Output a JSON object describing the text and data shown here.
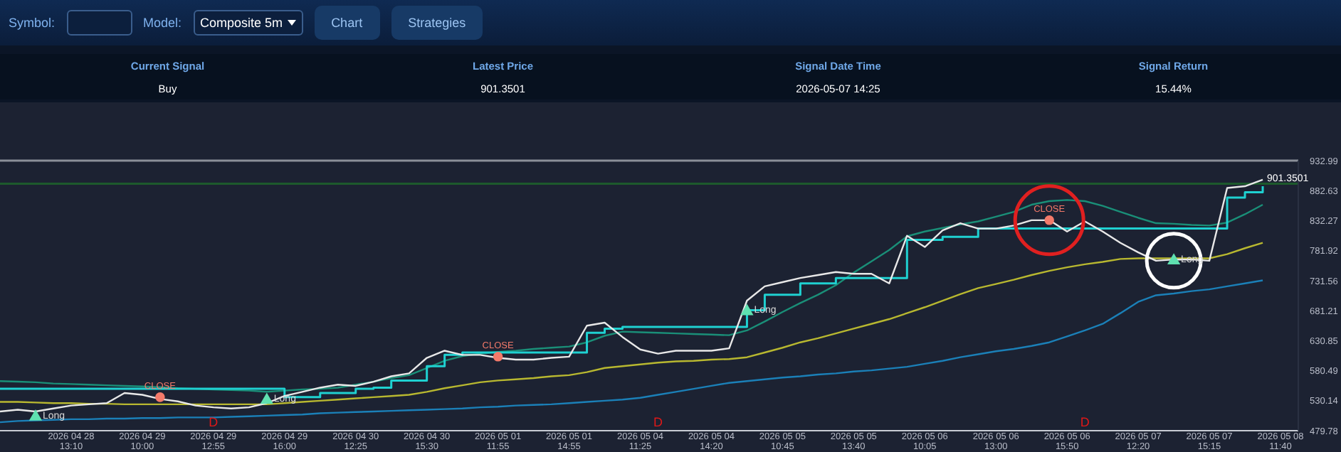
{
  "chart_data": [
    {
      "type": "other",
      "categories": [
        "Current Signal",
        "Latest Price",
        "Signal Date Time",
        "Signal Return"
      ],
      "value_labels": [
        "Buy",
        "901.3501",
        "2026-05-07 14:25",
        "15.44%"
      ],
      "annotations": [
        "Symbol:",
        "Model:",
        "Composite 5m",
        "Chart",
        "Strategies"
      ]
    },
    {
      "type": "line",
      "categories": [
        null,
        null,
        null,
        null,
        "2026 04 28 13:10",
        null,
        null,
        null,
        "2026 04 29 10:00",
        null,
        null,
        null,
        "2026 04 29 12:55",
        null,
        null,
        null,
        "2026 04 29 16:00",
        null,
        null,
        null,
        "2026 04 30 12:25",
        null,
        null,
        null,
        "2026 04 30 15:30",
        null,
        null,
        null,
        "2026 05 01 11:55",
        null,
        null,
        null,
        "2026 05 01 14:55",
        null,
        null,
        null,
        "2026 05 04 11:25",
        null,
        null,
        null,
        "2026 05 04 14:20",
        null,
        null,
        null,
        "2026 05 05 10:45",
        null,
        null,
        null,
        "2026 05 05 13:40",
        null,
        null,
        null,
        "2026 05 06 10:05",
        null,
        null,
        null,
        "2026 05 06 13:00",
        null,
        null,
        null,
        "2026 05 06 15:50",
        null,
        null,
        null,
        "2026 05 07 12:20",
        null,
        null,
        null,
        "2026 05 07 15:15",
        null,
        null,
        null,
        "2026 05 08 11:40",
        null
      ],
      "ylim": [
        479.78,
        932.99
      ],
      "yticks": [
        479.78,
        530.14,
        580.49,
        630.85,
        681.21,
        731.56,
        781.92,
        832.27,
        882.63,
        932.99
      ],
      "series": [
        {
          "type": "line",
          "color": "#1b80b8",
          "values": [
            494,
            496,
            497,
            498,
            499,
            499,
            500,
            500,
            501,
            501,
            502,
            502,
            502,
            503,
            504,
            505,
            506,
            507,
            509,
            510,
            511,
            512,
            513,
            514,
            515,
            516,
            517,
            519,
            520,
            522,
            523,
            524,
            526,
            528,
            530,
            532,
            535,
            540,
            545,
            550,
            555,
            560,
            563,
            566,
            569,
            571,
            574,
            576,
            579,
            581,
            584,
            587,
            592,
            597,
            603,
            608,
            613,
            617,
            622,
            628,
            638,
            648,
            659,
            677,
            696,
            707,
            710,
            714,
            717,
            722,
            727,
            732,
            null,
            null
          ]
        },
        {
          "type": "line",
          "color": "#b8b830",
          "values": [
            528,
            528,
            527,
            526,
            526,
            525,
            525,
            524,
            524,
            524,
            524,
            524,
            524,
            524,
            524,
            524,
            526,
            528,
            530,
            532,
            534,
            536,
            538,
            540,
            545,
            551,
            556,
            561,
            564,
            566,
            568,
            571,
            573,
            578,
            585,
            588,
            591,
            594,
            596,
            597,
            599,
            600,
            603,
            611,
            619,
            628,
            635,
            643,
            651,
            659,
            667,
            677,
            687,
            698,
            709,
            719,
            726,
            733,
            741,
            748,
            754,
            759,
            763,
            768,
            769,
            769,
            769,
            769,
            769,
            776,
            786,
            795,
            null,
            null
          ]
        },
        {
          "type": "line",
          "color": "#1a8f78",
          "values": [
            563,
            562,
            561,
            559,
            558,
            557,
            556,
            555,
            554,
            553,
            551,
            550,
            549,
            548,
            547,
            545,
            547,
            549,
            550,
            552,
            557,
            562,
            568,
            573,
            585,
            597,
            605,
            609,
            612,
            614,
            617,
            619,
            621,
            628,
            639,
            646,
            645,
            644,
            643,
            642,
            641,
            640,
            648,
            663,
            679,
            694,
            708,
            724,
            745,
            764,
            783,
            806,
            814,
            820,
            826,
            831,
            839,
            847,
            859,
            865,
            867,
            865,
            857,
            847,
            837,
            828,
            827,
            825,
            824,
            829,
            843,
            859,
            null,
            null
          ]
        },
        {
          "type": "step",
          "color": "#1fd1d1",
          "values": [
            550,
            550,
            550,
            550,
            550,
            550,
            550,
            550,
            550,
            550,
            550,
            550,
            550,
            550,
            550,
            550,
            536,
            536,
            543,
            543,
            550,
            552,
            564,
            564,
            588,
            607,
            611,
            611,
            611,
            611,
            611,
            611,
            611,
            644,
            651,
            654,
            654,
            654,
            654,
            654,
            654,
            654,
            682,
            708,
            708,
            727,
            727,
            736,
            736,
            736,
            736,
            800,
            800,
            805,
            805,
            819,
            819,
            819,
            819,
            819,
            819,
            819,
            819,
            819,
            819,
            819,
            819,
            819,
            819,
            871,
            880,
            890,
            null,
            null
          ]
        },
        {
          "type": "line",
          "color": "#e8e8e8",
          "values": [
            512,
            515,
            512,
            517,
            522,
            524,
            526,
            543,
            540,
            533,
            529,
            522,
            519,
            517,
            519,
            526,
            538,
            545,
            552,
            557,
            555,
            562,
            571,
            576,
            602,
            614,
            607,
            607,
            602,
            599,
            599,
            602,
            604,
            656,
            661,
            637,
            616,
            609,
            614,
            614,
            614,
            618,
            698,
            722,
            729,
            736,
            741,
            746,
            743,
            743,
            727,
            807,
            788,
            816,
            828,
            819,
            819,
            824,
            833,
            833,
            814,
            831,
            814,
            795,
            779,
            765,
            767,
            767,
            765,
            887,
            890,
            901,
            null,
            null
          ]
        },
        {
          "type": "scatter",
          "name": "Long",
          "marker": "triangle",
          "color": "#5fe0b0",
          "values": [
            null,
            null,
            503,
            null,
            null,
            null,
            null,
            null,
            null,
            null,
            null,
            null,
            null,
            null,
            null,
            531,
            null,
            null,
            null,
            null,
            null,
            null,
            null,
            null,
            null,
            null,
            null,
            null,
            null,
            null,
            null,
            null,
            null,
            null,
            null,
            null,
            null,
            null,
            null,
            null,
            null,
            null,
            680,
            null,
            null,
            null,
            null,
            null,
            null,
            null,
            null,
            null,
            null,
            null,
            null,
            null,
            null,
            null,
            null,
            null,
            null,
            null,
            null,
            null,
            null,
            null,
            765,
            null,
            null,
            null,
            null,
            null,
            null,
            null
          ]
        },
        {
          "type": "scatter",
          "name": "CLOSE",
          "marker": "circle",
          "color": "#f47a6a",
          "values": [
            null,
            null,
            null,
            null,
            null,
            null,
            null,
            null,
            null,
            536,
            null,
            null,
            null,
            null,
            null,
            null,
            null,
            null,
            null,
            null,
            null,
            null,
            null,
            null,
            null,
            null,
            null,
            null,
            604,
            null,
            null,
            null,
            null,
            null,
            null,
            null,
            null,
            null,
            null,
            null,
            null,
            null,
            null,
            null,
            null,
            null,
            null,
            null,
            null,
            null,
            null,
            null,
            null,
            null,
            null,
            null,
            null,
            null,
            null,
            833,
            null,
            null,
            null,
            null,
            null,
            null,
            null,
            null,
            null,
            null,
            null,
            null,
            null,
            null
          ]
        }
      ],
      "ref_lines": [
        {
          "axis": "y",
          "value": 932.99,
          "color": "#8a8f99"
        },
        {
          "axis": "y",
          "value": 894.3,
          "color": "#1d5a2c"
        }
      ],
      "annotations": [
        {
          "text": "901.3501",
          "y": 901.35
        },
        "D",
        "D",
        "D"
      ]
    }
  ]
}
